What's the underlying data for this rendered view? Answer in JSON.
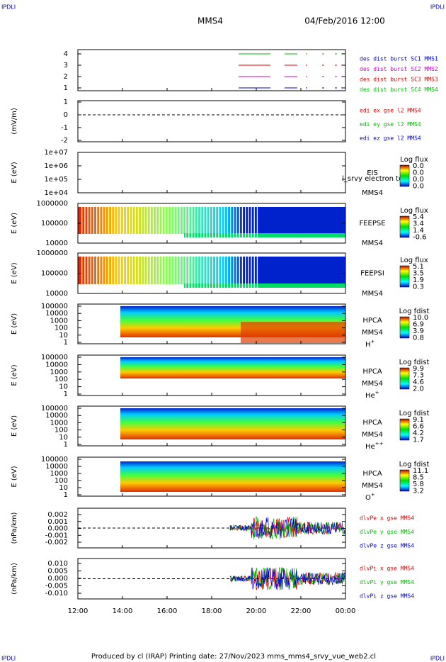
{
  "header": {
    "corner_left": "IPDLI",
    "corner_right": "IPDLI",
    "title": "MMS4",
    "date": "04/Feb/2016 12:00"
  },
  "panels": [
    {
      "y_ticks": [
        "4",
        "3",
        "2",
        "1"
      ],
      "legend": [
        {
          "text": "des dist burst SC1 MMS1",
          "color": "#0000cc"
        },
        {
          "text": "des dist burst SC2 MMS2",
          "color": "#cc00cc"
        },
        {
          "text": "des dist burst SC3 MMS3",
          "color": "#dd0000"
        },
        {
          "text": "des dist burst SC4 MMS4",
          "color": "#00bb00"
        }
      ]
    },
    {
      "y_label": "(mV/m)",
      "y_ticks": [
        "1",
        "0",
        "-1",
        "-2"
      ],
      "legend": [
        {
          "text": "edi ex gse l2 MMS4",
          "color": "#dd0000"
        },
        {
          "text": "edi ey gse l2 MMS4",
          "color": "#00bb00"
        },
        {
          "text": "edi ez gse l2 MMS4",
          "color": "#0000cc"
        }
      ]
    },
    {
      "y_label": "E (eV)",
      "y_ticks": [
        "1e+07",
        "1e+06",
        "1e+05",
        "1e+04"
      ],
      "instrument": [
        "EIS",
        "MMS4"
      ],
      "overlay": "l_srvy electron to",
      "colorbar": {
        "title": "Log flux",
        "labels": [
          "0.0",
          "0.0",
          "0.0",
          "0.0"
        ]
      }
    },
    {
      "y_label": "E (eV)",
      "y_ticks": [
        "1000000",
        "100000",
        "10000"
      ],
      "instrument": [
        "FEEPSE",
        "MMS4"
      ],
      "colorbar": {
        "title": "Log flux",
        "labels": [
          "5.4",
          "3.4",
          "1.4",
          "-0.6"
        ]
      }
    },
    {
      "y_label": "E (eV)",
      "y_ticks": [
        "1000000",
        "100000",
        "10000"
      ],
      "instrument": [
        "FEEPSI",
        "MMS4"
      ],
      "colorbar": {
        "title": "Log flux",
        "labels": [
          "5.1",
          "3.5",
          "1.9",
          "0.3"
        ]
      }
    },
    {
      "y_label": "E (eV)",
      "y_ticks": [
        "100000",
        "10000",
        "1000",
        "100",
        "10",
        "1"
      ],
      "instrument": [
        "HPCA",
        "MMS4"
      ],
      "species": {
        "name": "H",
        "charge": "+"
      },
      "colorbar": {
        "title": "Log fdist",
        "labels": [
          "10.0",
          "6.9",
          "3.9",
          "0.8"
        ]
      }
    },
    {
      "y_label": "E (eV)",
      "y_ticks": [
        "100000",
        "10000",
        "1000",
        "100",
        "10",
        "1"
      ],
      "instrument": [
        "HPCA",
        "MMS4"
      ],
      "species": {
        "name": "He",
        "charge": "+"
      },
      "colorbar": {
        "title": "Log fdist",
        "labels": [
          "9.9",
          "7.3",
          "4.6",
          "2.0"
        ]
      }
    },
    {
      "y_label": "E (eV)",
      "y_ticks": [
        "100000",
        "10000",
        "1000",
        "100",
        "10",
        "1"
      ],
      "instrument": [
        "HPCA",
        "MMS4"
      ],
      "species": {
        "name": "He",
        "charge": "++"
      },
      "colorbar": {
        "title": "Log fdist",
        "labels": [
          "9.1",
          "6.6",
          "4.2",
          "1.7"
        ]
      }
    },
    {
      "y_label": "E (eV)",
      "y_ticks": [
        "100000",
        "10000",
        "1000",
        "100",
        "10",
        "1"
      ],
      "instrument": [
        "HPCA",
        "MMS4"
      ],
      "species": {
        "name": "O",
        "charge": "+"
      },
      "colorbar": {
        "title": "Log fdist",
        "labels": [
          "11.1",
          "8.5",
          "5.8",
          "3.2"
        ]
      }
    },
    {
      "y_label": "(nPa/km)",
      "y_ticks": [
        "0.002",
        "0.001",
        "0.000",
        "-0.001",
        "-0.002"
      ],
      "legend": [
        {
          "text": "dlvPe x gse MMS4",
          "color": "#dd0000"
        },
        {
          "text": "dlvPe y gse MMS4",
          "color": "#00bb00"
        },
        {
          "text": "dlvPe z gse MMS4",
          "color": "#0000cc"
        }
      ]
    },
    {
      "y_label": "(nPa/km)",
      "y_ticks": [
        "0.010",
        "0.005",
        "0.000",
        "-0.005",
        "-0.010"
      ],
      "legend": [
        {
          "text": "dlvPi x gse MMS4",
          "color": "#dd0000"
        },
        {
          "text": "dlvPi y gse MMS4",
          "color": "#00bb00"
        },
        {
          "text": "dlvPi z gse MMS4",
          "color": "#0000cc"
        }
      ]
    }
  ],
  "x_ticks": [
    "12:00",
    "14:00",
    "16:00",
    "18:00",
    "20:00",
    "22:00",
    "00:00"
  ],
  "footer": {
    "text": "Produced by cl (IRAP)   Printing date: 27/Nov/2023   mms_mms4_srvy_vue_web2.cl",
    "corner_left": "IPDLI",
    "corner_right": "IPDLI"
  }
}
